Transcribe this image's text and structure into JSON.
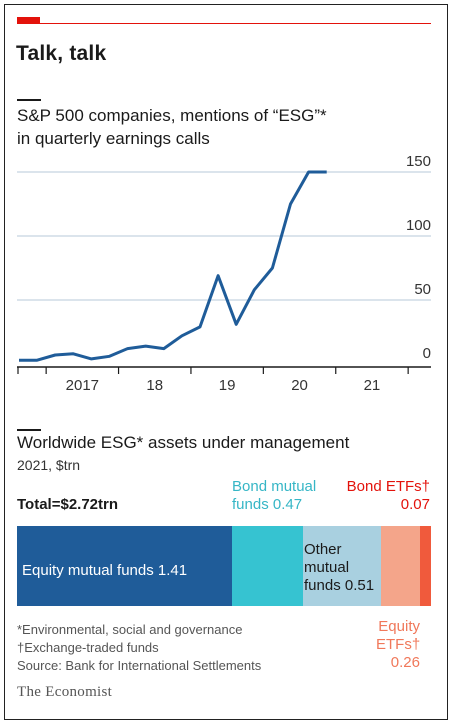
{
  "header": {
    "title": "Talk, talk"
  },
  "colors": {
    "brand_red": "#e3120b",
    "line": "#1f5c99",
    "grid": "#b7c9d9",
    "equity_mutual": "#1f5c99",
    "bond_mutual": "#36c3d1",
    "other_mutual": "#a9d0e0",
    "equity_etfs": "#f4a58a",
    "bond_etfs": "#f05a3c"
  },
  "chart_data": [
    {
      "type": "line",
      "title": "S&P 500 companies, mentions of “ESG”*",
      "subtitle": "in quarterly earnings calls",
      "x": [
        "2016Q3",
        "2016Q4",
        "2017Q1",
        "2017Q2",
        "2017Q3",
        "2017Q4",
        "2018Q1",
        "2018Q2",
        "2018Q3",
        "2018Q4",
        "2019Q1",
        "2019Q2",
        "2019Q3",
        "2019Q4",
        "2020Q1",
        "2020Q2",
        "2020Q3",
        "2020Q4",
        "2021Q1",
        "2021Q2"
      ],
      "values": [
        3,
        3,
        7,
        8,
        4,
        6,
        12,
        14,
        12,
        22,
        29,
        69,
        31,
        58,
        75,
        125,
        150,
        150,
        null,
        null
      ],
      "ylim": [
        0,
        150
      ],
      "yticks": [
        "150",
        "100",
        "50",
        "0"
      ],
      "xticks": [
        "2017",
        "18",
        "19",
        "20",
        "21"
      ],
      "grid": true,
      "y_axis_side": "right"
    },
    {
      "type": "bar",
      "title": "Worldwide ESG* assets under management",
      "subtitle": "2021, $trn",
      "total_label": "Total=$2.72trn",
      "stacked": true,
      "segments": [
        {
          "name": "Equity mutual funds",
          "value": 1.41,
          "label": "Equity mutual funds 1.41"
        },
        {
          "name": "Bond mutual funds",
          "value": 0.47,
          "label_line1": "Bond mutual",
          "label_line2": "funds 0.47"
        },
        {
          "name": "Other mutual funds",
          "value": 0.51,
          "label_line1": "Other",
          "label_line2": "mutual",
          "label_line3": "funds 0.51"
        },
        {
          "name": "Equity ETFs",
          "value": 0.26,
          "label_line1": "Equity",
          "label_line2": "ETFs†",
          "label_line3": "0.26"
        },
        {
          "name": "Bond ETFs",
          "value": 0.07,
          "label_line1": "Bond ETFs†",
          "label_line2": "0.07"
        }
      ]
    }
  ],
  "footnotes": {
    "esg": "*Environmental, social and governance",
    "etf": "†Exchange-traded funds",
    "source": "Source: Bank for International Settlements"
  },
  "brand": "The Economist"
}
